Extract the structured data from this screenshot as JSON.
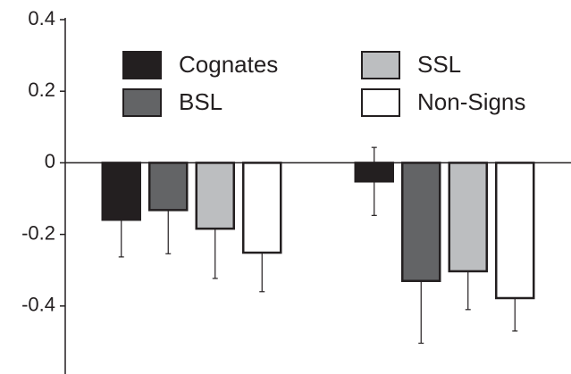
{
  "chart_data": {
    "type": "bar",
    "categories": [
      null,
      null
    ],
    "series": [
      {
        "name": "Cognates",
        "color": "#231f20",
        "values": [
          -0.159,
          -0.052
        ],
        "errors": [
          0.104,
          0.095
        ]
      },
      {
        "name": "BSL",
        "color": "#636466",
        "values": [
          -0.132,
          -0.33
        ],
        "errors": [
          0.122,
          0.174
        ]
      },
      {
        "name": "SSL",
        "color": "#bcbec0",
        "values": [
          -0.184,
          -0.303
        ],
        "errors": [
          0.139,
          0.107
        ]
      },
      {
        "name": "Non-Signs",
        "color": "#ffffff",
        "values": [
          -0.251,
          -0.378
        ],
        "errors": [
          0.109,
          0.092
        ]
      }
    ],
    "ylim": [
      -0.59,
      0.4
    ],
    "yticks": [
      0.4,
      0.2,
      0,
      -0.2,
      -0.4
    ]
  }
}
